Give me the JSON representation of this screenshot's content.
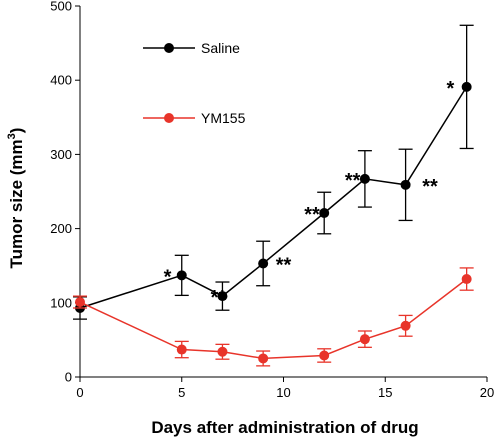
{
  "chart_data": {
    "type": "line",
    "xlabel": "Days after administration of drug",
    "ylabel_main": "Tumor size (mm",
    "ylabel_sup": "3",
    "ylabel_close": ")",
    "xlim": [
      0,
      20
    ],
    "ylim": [
      0,
      500
    ],
    "xticks": [
      0,
      5,
      10,
      15,
      20
    ],
    "yticks": [
      0,
      100,
      200,
      300,
      400,
      500
    ],
    "grid": false,
    "legend_position": "top-left",
    "series": [
      {
        "name": "Saline",
        "color": "#000000",
        "x": [
          0,
          5,
          7,
          9,
          12,
          14,
          16,
          19
        ],
        "y": [
          93,
          137,
          109,
          153,
          221,
          267,
          259,
          391
        ],
        "err": [
          15,
          27,
          19,
          30,
          28,
          38,
          48,
          83
        ]
      },
      {
        "name": "YM155",
        "color": "#e8342a",
        "x": [
          0,
          5,
          7,
          9,
          12,
          14,
          16,
          19
        ],
        "y": [
          101,
          37,
          34,
          25,
          29,
          51,
          69,
          132
        ],
        "err": [
          8,
          11,
          10,
          10,
          9,
          11,
          14,
          15
        ]
      }
    ],
    "annotations": [
      {
        "text": "*",
        "x": 4.3,
        "y": 137
      },
      {
        "text": "**",
        "x": 6.8,
        "y": 109
      },
      {
        "text": "**",
        "x": 10.0,
        "y": 153
      },
      {
        "text": "**",
        "x": 11.4,
        "y": 221
      },
      {
        "text": "**",
        "x": 13.4,
        "y": 267
      },
      {
        "text": "**",
        "x": 17.2,
        "y": 259
      },
      {
        "text": "*",
        "x": 18.2,
        "y": 391
      }
    ]
  }
}
